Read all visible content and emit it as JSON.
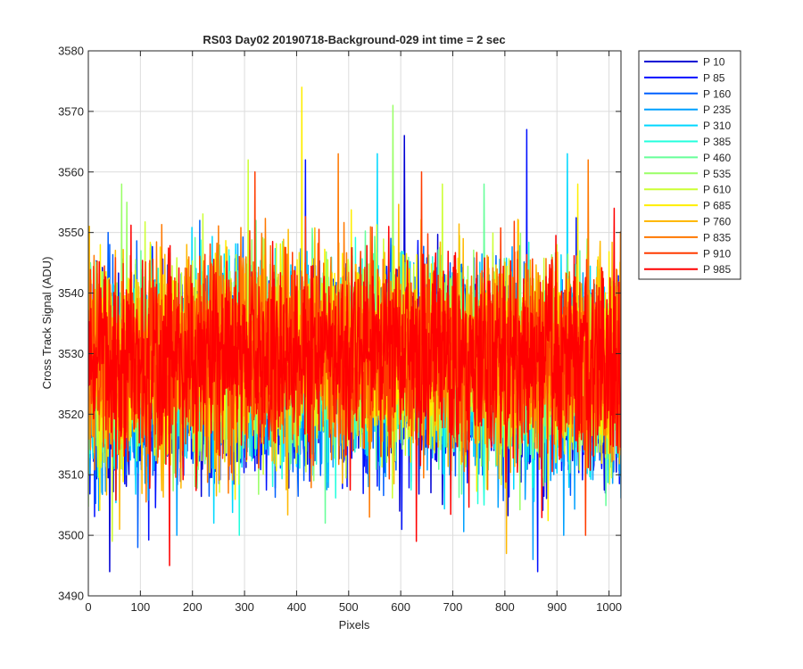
{
  "chart_data": {
    "type": "line",
    "title": "RS03 Day02 20190718-Background-029 int time = 2 sec",
    "xlabel": "Pixels",
    "ylabel": "Cross Track Signal (ADU)",
    "xlim": [
      0,
      1023
    ],
    "ylim": [
      3490,
      3580
    ],
    "xticks": [
      0,
      100,
      200,
      300,
      400,
      500,
      600,
      700,
      800,
      900,
      1000
    ],
    "yticks": [
      3490,
      3500,
      3510,
      3520,
      3530,
      3540,
      3550,
      3560,
      3570,
      3580
    ],
    "grid": true,
    "legend_position": "outside-top-right",
    "samples_per_series": 1024,
    "series": [
      {
        "name": "P 10",
        "color": "#0000d4",
        "base": 3524,
        "extremes": [
          [
            598,
            3504
          ],
          [
            607,
            3566
          ],
          [
            41,
            3494
          ]
        ]
      },
      {
        "name": "P 85",
        "color": "#0010ff",
        "base": 3524,
        "extremes": [
          [
            842,
            3567
          ],
          [
            863,
            3494
          ],
          [
            417,
            3562
          ]
        ]
      },
      {
        "name": "P 160",
        "color": "#0060ff",
        "base": 3525,
        "extremes": [
          [
            38,
            3550
          ],
          [
            95,
            3498
          ],
          [
            214,
            3552
          ]
        ]
      },
      {
        "name": "P 235",
        "color": "#00a0ff",
        "base": 3525,
        "extremes": [
          [
            170,
            3500
          ],
          [
            854,
            3496
          ],
          [
            913,
            3500
          ]
        ]
      },
      {
        "name": "P 310",
        "color": "#00d8ff",
        "base": 3526,
        "extremes": [
          [
            555,
            3563
          ],
          [
            920,
            3563
          ],
          [
            241,
            3502
          ]
        ]
      },
      {
        "name": "P 385",
        "color": "#22ffdd",
        "base": 3526,
        "extremes": [
          [
            290,
            3500
          ],
          [
            760,
            3505
          ],
          [
            120,
            3548
          ]
        ]
      },
      {
        "name": "P 460",
        "color": "#66ff99",
        "base": 3527,
        "extremes": [
          [
            455,
            3502
          ],
          [
            760,
            3558
          ],
          [
            322,
            3552
          ]
        ]
      },
      {
        "name": "P 535",
        "color": "#99ff66",
        "base": 3527,
        "extremes": [
          [
            64,
            3558
          ],
          [
            74,
            3555
          ],
          [
            585,
            3571
          ]
        ]
      },
      {
        "name": "P 610",
        "color": "#ccff33",
        "base": 3527,
        "extremes": [
          [
            307,
            3562
          ],
          [
            680,
            3558
          ],
          [
            46,
            3499
          ]
        ]
      },
      {
        "name": "P 685",
        "color": "#ffee00",
        "base": 3528,
        "extremes": [
          [
            410,
            3574
          ],
          [
            940,
            3558
          ],
          [
            23,
            3548
          ]
        ]
      },
      {
        "name": "P 760",
        "color": "#ffb800",
        "base": 3528,
        "extremes": [
          [
            803,
            3497
          ],
          [
            60,
            3501
          ],
          [
            720,
            3549
          ]
        ]
      },
      {
        "name": "P 835",
        "color": "#ff7800",
        "base": 3528,
        "extremes": [
          [
            480,
            3563
          ],
          [
            960,
            3562
          ],
          [
            540,
            3503
          ]
        ]
      },
      {
        "name": "P 910",
        "color": "#ff3c00",
        "base": 3528,
        "extremes": [
          [
            320,
            3560
          ],
          [
            640,
            3560
          ],
          [
            955,
            3500
          ]
        ]
      },
      {
        "name": "P 985",
        "color": "#ff0000",
        "base": 3528,
        "extremes": [
          [
            156,
            3495
          ],
          [
            630,
            3499
          ],
          [
            1010,
            3554
          ]
        ]
      }
    ]
  }
}
